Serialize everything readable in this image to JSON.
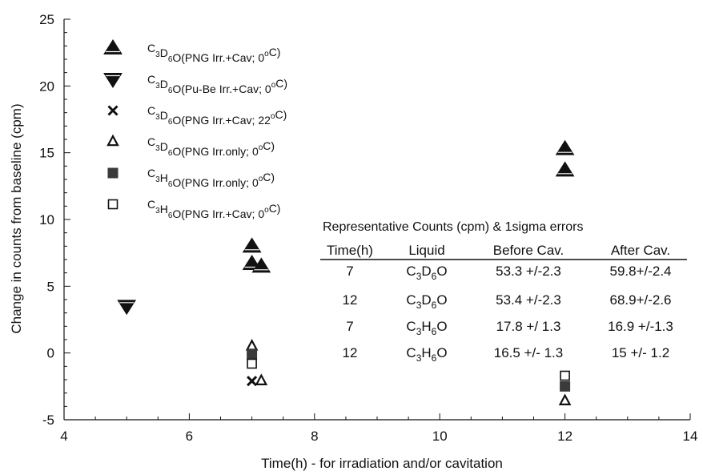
{
  "chart_data": {
    "type": "scatter",
    "xlabel": "Time(h) -  for irradiation and/or cavitation",
    "ylabel": "Change in counts from baseline (cpm)",
    "xlim": [
      4,
      14
    ],
    "ylim": [
      -5,
      25
    ],
    "x_ticks": [
      4,
      6,
      8,
      10,
      12,
      14
    ],
    "y_ticks": [
      -5,
      0,
      5,
      10,
      15,
      20,
      25
    ],
    "grid": false,
    "legend_position": "top-left",
    "series": [
      {
        "name_parts": [
          {
            "t": "C",
            "sub": false
          },
          {
            "t": "3",
            "sub": true
          },
          {
            "t": "D",
            "sub": false
          },
          {
            "t": "6",
            "sub": true
          },
          {
            "t": "O(PNG Irr.+Cav; 0",
            "sub": false
          },
          {
            "t": "o",
            "sup": true
          },
          {
            "t": "C)",
            "sub": false
          }
        ],
        "marker": "triangle-up-filled",
        "x": [
          7.0,
          7.0,
          7.15,
          12.0,
          12.0
        ],
        "y": [
          8.0,
          6.7,
          6.5,
          15.3,
          13.7
        ]
      },
      {
        "name_parts": [
          {
            "t": "C",
            "sub": false
          },
          {
            "t": "3",
            "sub": true
          },
          {
            "t": "D",
            "sub": false
          },
          {
            "t": "6",
            "sub": true
          },
          {
            "t": "O(Pu-Be Irr.+Cav; 0",
            "sub": false
          },
          {
            "t": "o",
            "sup": true
          },
          {
            "t": "C)",
            "sub": false
          }
        ],
        "marker": "triangle-down-filled",
        "x": [
          5.0
        ],
        "y": [
          3.5
        ]
      },
      {
        "name_parts": [
          {
            "t": "C",
            "sub": false
          },
          {
            "t": "3",
            "sub": true
          },
          {
            "t": "D",
            "sub": false
          },
          {
            "t": "6",
            "sub": true
          },
          {
            "t": "O(PNG Irr.+Cav; 22",
            "sub": false
          },
          {
            "t": "o",
            "sup": true
          },
          {
            "t": "C)",
            "sub": false
          }
        ],
        "marker": "cross",
        "x": [
          7.0
        ],
        "y": [
          -2.1
        ]
      },
      {
        "name_parts": [
          {
            "t": "C",
            "sub": false
          },
          {
            "t": "3",
            "sub": true
          },
          {
            "t": "D",
            "sub": false
          },
          {
            "t": "6",
            "sub": true
          },
          {
            "t": "O(PNG Irr.only; 0",
            "sub": false
          },
          {
            "t": "o",
            "sup": true
          },
          {
            "t": "C)",
            "sub": false
          }
        ],
        "marker": "triangle-up-open",
        "x": [
          7.0,
          7.15,
          12.0
        ],
        "y": [
          0.5,
          -2.1,
          -3.6
        ]
      },
      {
        "name_parts": [
          {
            "t": "C",
            "sub": false
          },
          {
            "t": "3",
            "sub": true
          },
          {
            "t": "H",
            "sub": false
          },
          {
            "t": "6",
            "sub": true
          },
          {
            "t": "O(PNG Irr.only; 0",
            "sub": false
          },
          {
            "t": "o",
            "sup": true
          },
          {
            "t": "C)",
            "sub": false
          }
        ],
        "marker": "square-filled",
        "x": [
          7.0,
          12.0
        ],
        "y": [
          -0.1,
          -2.5
        ]
      },
      {
        "name_parts": [
          {
            "t": "C",
            "sub": false
          },
          {
            "t": "3",
            "sub": true
          },
          {
            "t": "H",
            "sub": false
          },
          {
            "t": "6",
            "sub": true
          },
          {
            "t": "O(PNG Irr.+Cav; 0",
            "sub": false
          },
          {
            "t": "o",
            "sup": true
          },
          {
            "t": "C)",
            "sub": false
          }
        ],
        "marker": "square-open",
        "x": [
          7.0,
          12.0
        ],
        "y": [
          -0.8,
          -1.7
        ]
      }
    ],
    "inset_table": {
      "title": "Representative Counts (cpm) & 1sigma errors",
      "headers": [
        "Time(h)",
        "Liquid",
        "Before Cav.",
        "After Cav."
      ],
      "rows": [
        {
          "time": "7",
          "liquid": [
            [
              "C",
              false
            ],
            [
              "3",
              true
            ],
            [
              "D",
              false
            ],
            [
              "6",
              true
            ],
            [
              "O",
              false
            ]
          ],
          "before": "53.3 +/-2.3",
          "after": "59.8+/-2.4"
        },
        {
          "time": "12",
          "liquid": [
            [
              "C",
              false
            ],
            [
              "3",
              true
            ],
            [
              "D",
              false
            ],
            [
              "6",
              true
            ],
            [
              "O",
              false
            ]
          ],
          "before": "53.4 +/-2.3",
          "after": "68.9+/-2.6"
        },
        {
          "time": "7",
          "liquid": [
            [
              "C",
              false
            ],
            [
              "3",
              true
            ],
            [
              "H",
              false
            ],
            [
              "6",
              true
            ],
            [
              "O",
              false
            ]
          ],
          "before": "17.8 +/ 1.3",
          "after": "16.9 +/-1.3"
        },
        {
          "time": "12",
          "liquid": [
            [
              "C",
              false
            ],
            [
              "3",
              true
            ],
            [
              "H",
              false
            ],
            [
              "6",
              true
            ],
            [
              "O",
              false
            ]
          ],
          "before": "16.5 +/- 1.3",
          "after": "15  +/- 1.2"
        }
      ]
    }
  }
}
